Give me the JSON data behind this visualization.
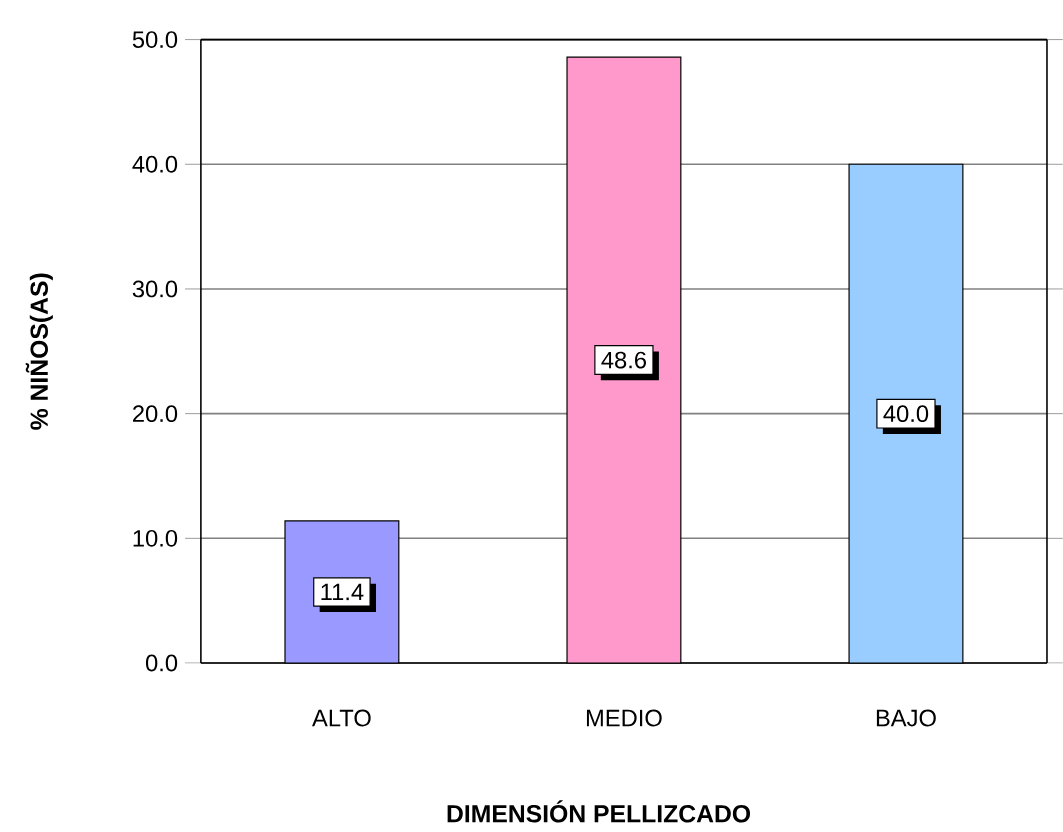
{
  "chart_data": {
    "type": "bar",
    "xlabel": "DIMENSIÓN PELLIZCADO",
    "ylabel": "% NIÑOS(AS)",
    "categories": [
      "ALTO",
      "MEDIO",
      "BAJO"
    ],
    "values": [
      11.4,
      48.6,
      40.0
    ],
    "colors": [
      "#9999ff",
      "#ff99cc",
      "#99ccff"
    ],
    "ylim": [
      0,
      50
    ],
    "yticks": [
      {
        "value": 0,
        "label": "0.0"
      },
      {
        "value": 10,
        "label": "10.0"
      },
      {
        "value": 20,
        "label": "20.0"
      },
      {
        "value": 30,
        "label": "30.0"
      },
      {
        "value": 40,
        "label": "40.0"
      },
      {
        "value": 50,
        "label": "50.0"
      }
    ],
    "grid": "y",
    "value_labels": [
      "11.4",
      "48.6",
      "40.0"
    ]
  }
}
